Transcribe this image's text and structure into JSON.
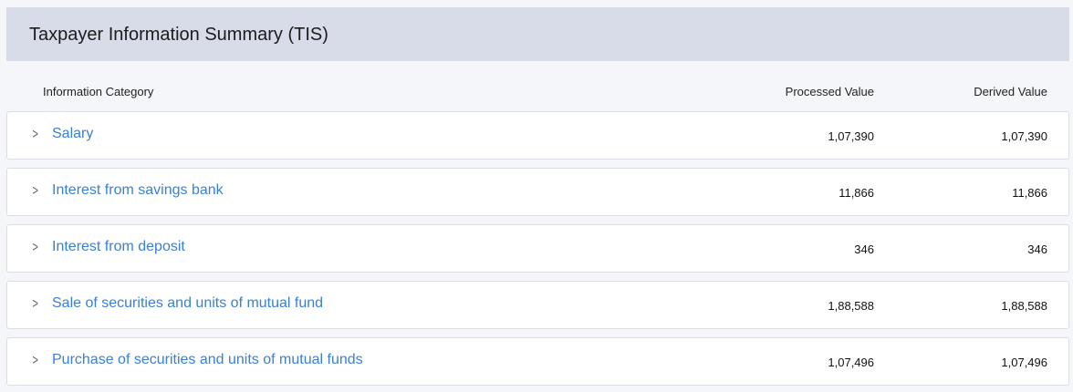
{
  "title": "Taxpayer Information Summary (TIS)",
  "columns": {
    "category": "Information Category",
    "processed": "Processed Value",
    "derived": "Derived Value"
  },
  "rows": [
    {
      "label": "Salary",
      "processed": "1,07,390",
      "derived": "1,07,390"
    },
    {
      "label": "Interest from savings bank",
      "processed": "11,866",
      "derived": "11,866"
    },
    {
      "label": "Interest from deposit",
      "processed": "346",
      "derived": "346"
    },
    {
      "label": "Sale of securities and units of mutual fund",
      "processed": "1,88,588",
      "derived": "1,88,588"
    },
    {
      "label": "Purchase of securities and units of mutual funds",
      "processed": "1,07,496",
      "derived": "1,07,496"
    }
  ]
}
